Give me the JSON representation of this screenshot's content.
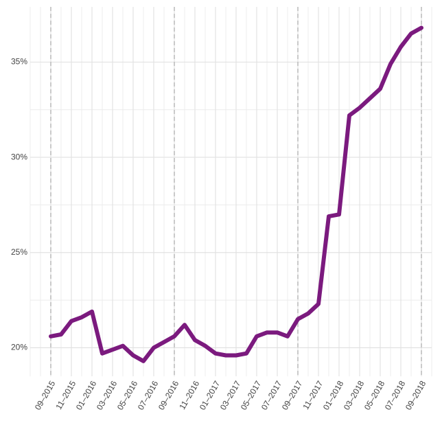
{
  "chart_data": {
    "type": "line",
    "x": [
      "2015-09",
      "2015-10",
      "2015-11",
      "2015-12",
      "2016-01",
      "2016-02",
      "2016-03",
      "2016-04",
      "2016-05",
      "2016-06",
      "2016-07",
      "2016-08",
      "2016-09",
      "2016-10",
      "2016-11",
      "2016-12",
      "2017-01",
      "2017-02",
      "2017-03",
      "2017-04",
      "2017-05",
      "2017-06",
      "2017-07",
      "2017-08",
      "2017-09",
      "2017-10",
      "2017-11",
      "2017-12",
      "2018-01",
      "2018-02",
      "2018-03",
      "2018-04",
      "2018-05",
      "2018-06",
      "2018-07",
      "2018-08",
      "2018-09"
    ],
    "series": [
      {
        "color": "#7b1a7e",
        "values": [
          20.6,
          20.7,
          21.4,
          21.6,
          21.9,
          19.7,
          19.9,
          20.1,
          19.6,
          19.3,
          20.0,
          20.3,
          20.6,
          21.2,
          20.4,
          20.1,
          19.7,
          19.6,
          19.6,
          19.7,
          20.6,
          20.8,
          20.8,
          20.6,
          21.5,
          21.8,
          22.3,
          26.9,
          27.0,
          32.2,
          32.6,
          33.1,
          33.6,
          34.9,
          35.8,
          36.5,
          36.8
        ]
      }
    ],
    "xlim": [
      "2015-07",
      "2018-10"
    ],
    "xticks": [
      {
        "value": "2015-09",
        "label": "09–2015"
      },
      {
        "value": "2015-11",
        "label": "11–2015"
      },
      {
        "value": "2016-01",
        "label": "01–2016"
      },
      {
        "value": "2016-03",
        "label": "03–2016"
      },
      {
        "value": "2016-05",
        "label": "05–2016"
      },
      {
        "value": "2016-07",
        "label": "07–2016"
      },
      {
        "value": "2016-09",
        "label": "09–2016"
      },
      {
        "value": "2016-11",
        "label": "11–2016"
      },
      {
        "value": "2017-01",
        "label": "01–2017"
      },
      {
        "value": "2017-03",
        "label": "03–2017"
      },
      {
        "value": "2017-05",
        "label": "05–2017"
      },
      {
        "value": "2017-07",
        "label": "07–2017"
      },
      {
        "value": "2017-09",
        "label": "09–2017"
      },
      {
        "value": "2017-11",
        "label": "11–2017"
      },
      {
        "value": "2018-01",
        "label": "01–2018"
      },
      {
        "value": "2018-03",
        "label": "03–2018"
      },
      {
        "value": "2018-05",
        "label": "05–2018"
      },
      {
        "value": "2018-07",
        "label": "07–2018"
      },
      {
        "value": "2018-09",
        "label": "09–2018"
      }
    ],
    "vlines": [
      "2015-09",
      "2016-09",
      "2017-09",
      "2018-09"
    ],
    "ylim": [
      18.5,
      37.9
    ],
    "yticks": [
      {
        "value": 20,
        "label": "20%"
      },
      {
        "value": 25,
        "label": "25%"
      },
      {
        "value": 30,
        "label": "30%"
      },
      {
        "value": 35,
        "label": "35%"
      }
    ],
    "grid": true
  }
}
